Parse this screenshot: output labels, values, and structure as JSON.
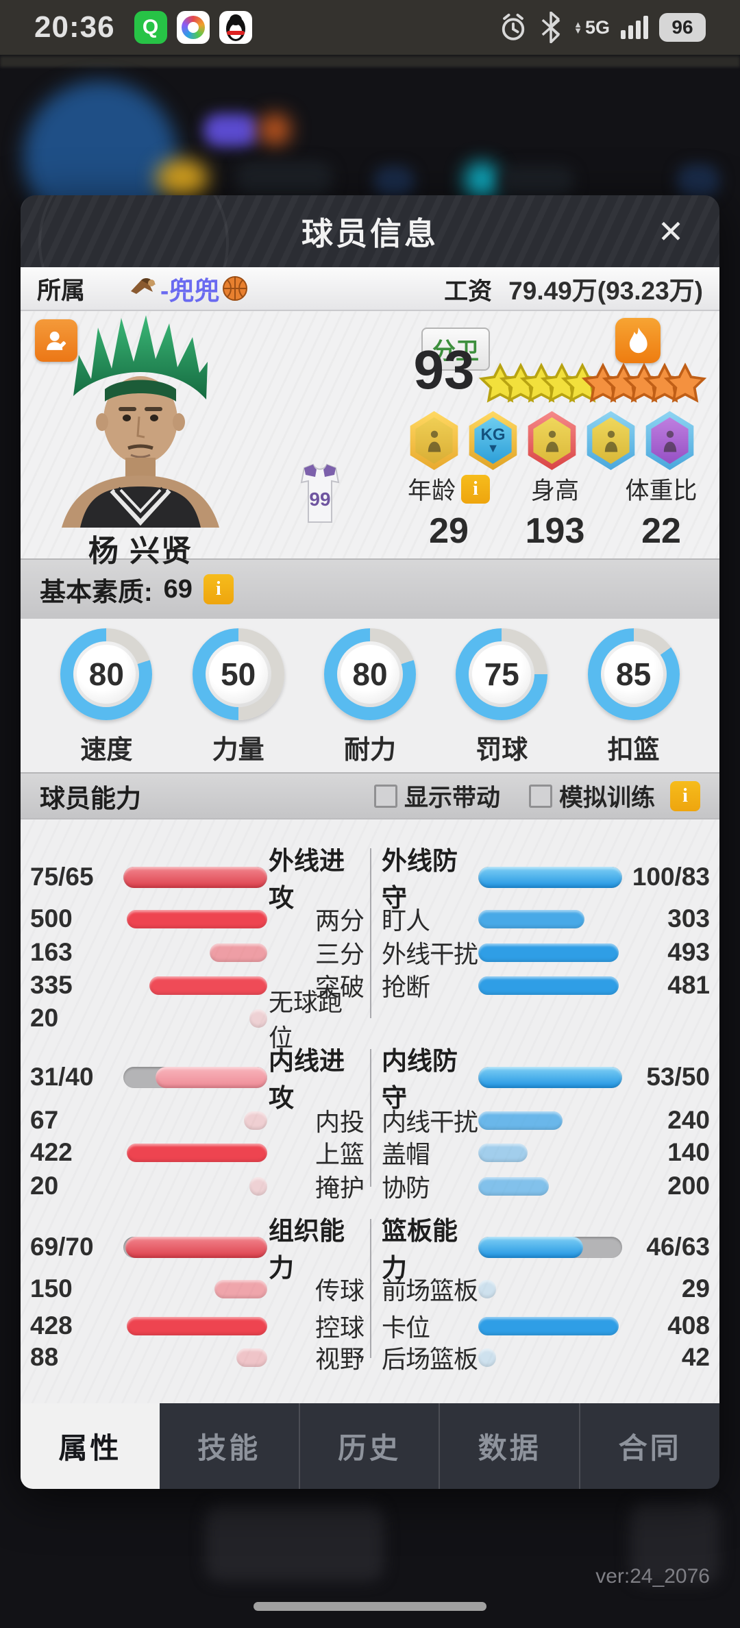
{
  "status_bar": {
    "time": "20:36",
    "network": "5G",
    "battery": "96",
    "notification_icons": [
      "quark-app-icon",
      "rainbow-app-icon",
      "qq-penguin-app-icon"
    ],
    "system_icons": [
      "alarm-icon",
      "bluetooth-icon",
      "network-arrows-icon",
      "signal-bars-icon",
      "battery-pill"
    ]
  },
  "dialog": {
    "title": "球员信息",
    "close_glyph": "✕",
    "affiliation": {
      "label": "所属",
      "team": "-兜兜",
      "prefix_icon": "eagle-icon",
      "suffix_icon": "basketball-icon"
    },
    "salary": {
      "label": "工资",
      "value": "79.49万(93.23万)"
    },
    "player": {
      "name": "杨 兴贤",
      "position": "分卫",
      "rating": "93",
      "jersey_number": "99",
      "stars": {
        "yellow": 5,
        "orange": 5
      },
      "badge_kg": "KG",
      "badges": [
        "player-medal-gold",
        "kg-medal-blue",
        "strength-medal-red",
        "web-medal-blue",
        "player-medal-purple"
      ],
      "attributes": [
        {
          "label": "年龄",
          "value": "29",
          "info": true
        },
        {
          "label": "身高",
          "value": "193",
          "info": false
        },
        {
          "label": "体重比",
          "value": "22",
          "info": false
        }
      ]
    },
    "base_quality": {
      "label": "基本素质:",
      "value": "69"
    },
    "gauges": [
      {
        "label": "速度",
        "value": 80
      },
      {
        "label": "力量",
        "value": 50
      },
      {
        "label": "耐力",
        "value": 80
      },
      {
        "label": "罚球",
        "value": 75
      },
      {
        "label": "扣篮",
        "value": 85
      }
    ],
    "ability": {
      "title": "球员能力",
      "checkboxes": [
        {
          "label": "显示带动",
          "checked": false
        },
        {
          "label": "模拟训练",
          "checked": false
        }
      ]
    },
    "stat_blocks": [
      {
        "left": {
          "header": {
            "value": "75/65",
            "label": "外线进攻"
          },
          "rows": [
            {
              "value": "500",
              "label": "两分"
            },
            {
              "value": "163",
              "label": "三分"
            },
            {
              "value": "335",
              "label": "突破"
            },
            {
              "value": "20",
              "label": "无球跑位"
            }
          ]
        },
        "right": {
          "header": {
            "label": "外线防守",
            "value": "100/83"
          },
          "rows": [
            {
              "label": "盯人",
              "value": "303"
            },
            {
              "label": "外线干扰",
              "value": "493"
            },
            {
              "label": "抢断",
              "value": "481"
            }
          ]
        }
      },
      {
        "left": {
          "header": {
            "value": "31/40",
            "label": "内线进攻"
          },
          "rows": [
            {
              "value": "67",
              "label": "内投"
            },
            {
              "value": "422",
              "label": "上篮"
            },
            {
              "value": "20",
              "label": "掩护"
            }
          ]
        },
        "right": {
          "header": {
            "label": "内线防守",
            "value": "53/50"
          },
          "rows": [
            {
              "label": "内线干扰",
              "value": "240"
            },
            {
              "label": "盖帽",
              "value": "140"
            },
            {
              "label": "协防",
              "value": "200"
            }
          ]
        }
      },
      {
        "left": {
          "header": {
            "value": "69/70",
            "label": "组织能力"
          },
          "rows": [
            {
              "value": "150",
              "label": "传球"
            },
            {
              "value": "428",
              "label": "控球"
            },
            {
              "value": "88",
              "label": "视野"
            }
          ]
        },
        "right": {
          "header": {
            "label": "篮板能力",
            "value": "46/63"
          },
          "rows": [
            {
              "label": "前场篮板",
              "value": "29"
            },
            {
              "label": "卡位",
              "value": "408"
            },
            {
              "label": "后场篮板",
              "value": "42"
            }
          ]
        }
      }
    ],
    "tabs": [
      {
        "label": "属性",
        "active": true
      },
      {
        "label": "技能",
        "active": false
      },
      {
        "label": "历史",
        "active": false
      },
      {
        "label": "数据",
        "active": false
      },
      {
        "label": "合同",
        "active": false
      }
    ]
  },
  "version": "ver:24_2076",
  "icons": {
    "info_glyph": "i",
    "kg_arrow": "▼"
  },
  "colors": {
    "red": "#ee4450",
    "blue": "#2f9ee6",
    "accent_yellow": "#f2b01e",
    "gauge_blue": "#58bbf0"
  }
}
